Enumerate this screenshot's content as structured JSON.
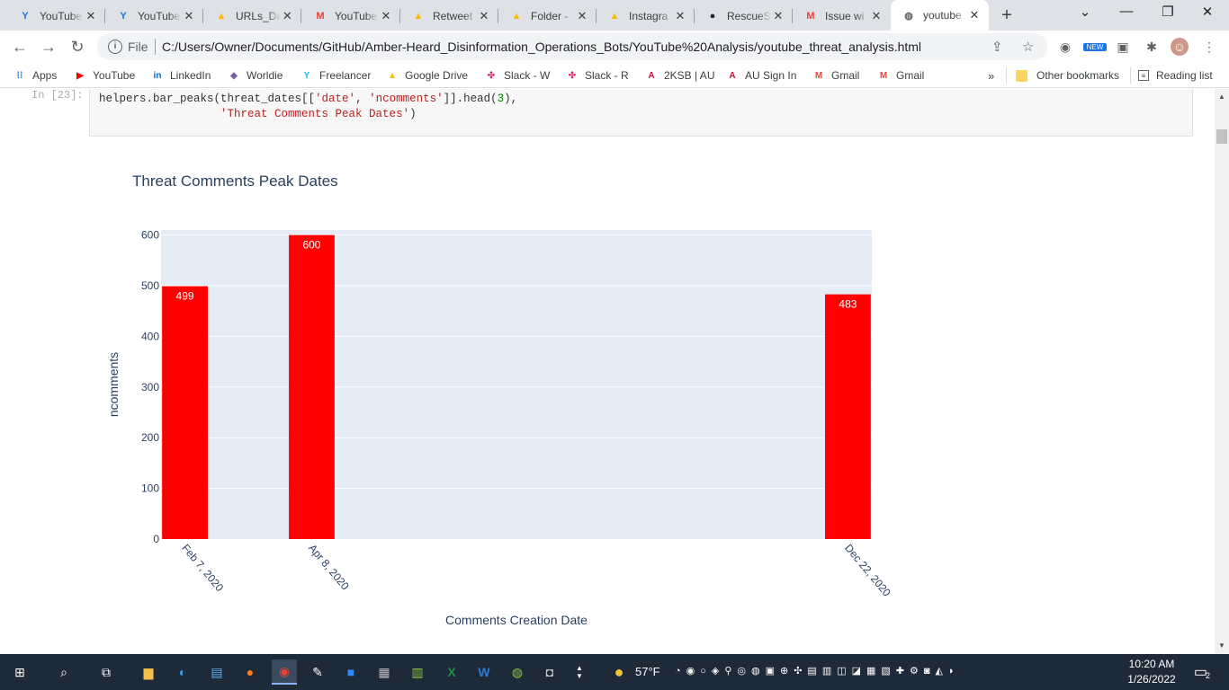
{
  "browser": {
    "tabs": [
      {
        "title": "YouTube",
        "icon": "youtube-y-icon",
        "color": "#1a73e8"
      },
      {
        "title": "YouTube",
        "icon": "youtube-y-icon",
        "color": "#1a73e8"
      },
      {
        "title": "URLs_Da",
        "icon": "google-drive-icon",
        "color": "#fbbc04"
      },
      {
        "title": "YouTube",
        "icon": "gmail-icon",
        "color": "#ea4335"
      },
      {
        "title": "Retweet",
        "icon": "google-drive-icon",
        "color": "#fbbc04"
      },
      {
        "title": "Folder -",
        "icon": "google-drive-icon",
        "color": "#fbbc04"
      },
      {
        "title": "Instagra",
        "icon": "google-drive-icon",
        "color": "#fbbc04"
      },
      {
        "title": "RescueS",
        "icon": "github-icon",
        "color": "#24292e"
      },
      {
        "title": "Issue wi",
        "icon": "gmail-icon",
        "color": "#ea4335"
      },
      {
        "title": "youtube",
        "icon": "globe-icon",
        "color": "#5f6368",
        "active": true
      }
    ],
    "address": {
      "scheme": "File",
      "url": "C:/Users/Owner/Documents/GitHub/Amber-Heard_Disinformation_Operations_Bots/YouTube%20Analysis/youtube_threat_analysis.html"
    },
    "bookmarks": [
      {
        "label": "Apps",
        "icon": "apps-grid-icon"
      },
      {
        "label": "YouTube",
        "icon": "youtube-icon"
      },
      {
        "label": "LinkedIn",
        "icon": "linkedin-icon"
      },
      {
        "label": "Worldie",
        "icon": "worldie-icon"
      },
      {
        "label": "Freelancer",
        "icon": "freelancer-icon"
      },
      {
        "label": "Google Drive",
        "icon": "google-drive-icon"
      },
      {
        "label": "Slack - W",
        "icon": "slack-icon"
      },
      {
        "label": "Slack - R",
        "icon": "slack-icon"
      },
      {
        "label": "2KSB | AU",
        "icon": "au-icon"
      },
      {
        "label": "AU Sign In",
        "icon": "au-icon"
      },
      {
        "label": "Gmail",
        "icon": "gmail-icon"
      },
      {
        "label": "Gmail",
        "icon": "gmail-icon"
      }
    ],
    "bookmarks_overflow": "»",
    "other_bookmarks": "Other bookmarks",
    "reading_list": "Reading list",
    "new_badge": "NEW"
  },
  "notebook": {
    "prompt": "In [23]:",
    "code_line1_a": "helpers.bar_peaks(threat_dates[[",
    "code_line1_s1": "'date'",
    "code_line1_b": ", ",
    "code_line1_s2": "'ncomments'",
    "code_line1_c": "]].head(",
    "code_line1_n": "3",
    "code_line1_d": "),",
    "code_line2_s": "'Threat Comments Peak Dates'",
    "code_line2_e": ")"
  },
  "chart_data": {
    "type": "bar",
    "title": "Threat Comments Peak Dates",
    "xlabel": "Comments Creation Date",
    "ylabel": "ncomments",
    "x_dates": [
      "2020-02-07",
      "2020-04-08",
      "2020-12-22"
    ],
    "categories": [
      "Feb 7, 2020",
      "Apr 8, 2020",
      "Dec 22, 2020"
    ],
    "values": [
      499,
      600,
      483
    ],
    "ylim": [
      0,
      610
    ],
    "yticks": [
      0,
      100,
      200,
      300,
      400,
      500,
      600
    ],
    "bar_color": "#ff0000",
    "plot_bg": "#e5ecf6",
    "grid": true
  },
  "taskbar": {
    "weather": "57°F",
    "time": "10:20 AM",
    "date": "1/26/2022",
    "notifications": "2"
  }
}
